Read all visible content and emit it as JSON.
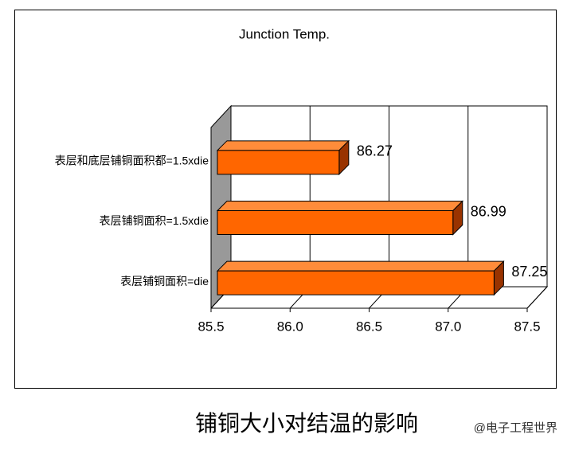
{
  "chart_data": {
    "type": "bar3d_horizontal",
    "title": "Junction Temp.",
    "categories": [
      "表层和底层铺铜面积都=1.5xdie",
      "表层铺铜面积=1.5xdie",
      "表层铺铜面积=die"
    ],
    "values": [
      86.27,
      86.99,
      87.25
    ],
    "color": "#ff6600",
    "xlim": [
      85.5,
      87.5
    ],
    "xticks": [
      85.5,
      {
        "value": 86,
        "label": "86.0"
      },
      86.5,
      {
        "value": 87,
        "label": "87.0"
      },
      87.5
    ],
    "grid": true,
    "caption": "铺铜大小对结温的影响",
    "watermark": "@电子工程世界"
  }
}
